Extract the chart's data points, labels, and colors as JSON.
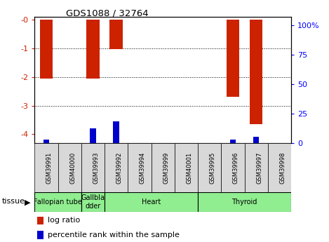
{
  "title": "GDS1088 / 32764",
  "samples": [
    "GSM39991",
    "GSM40000",
    "GSM39993",
    "GSM39992",
    "GSM39994",
    "GSM39999",
    "GSM40001",
    "GSM39995",
    "GSM39996",
    "GSM39997",
    "GSM39998"
  ],
  "log_ratios": [
    -2.05,
    0.0,
    -2.05,
    -1.02,
    0.0,
    0.0,
    0.0,
    0.0,
    -2.7,
    -3.65,
    0.0
  ],
  "percentile_ranks": [
    3,
    0,
    12,
    18,
    0,
    0,
    0,
    0,
    3,
    5,
    0
  ],
  "ylim_left": [
    -4.3,
    0.1
  ],
  "ylim_right": [
    0,
    107
  ],
  "left_ticks": [
    0,
    -1,
    -2,
    -3,
    -4
  ],
  "right_ticks": [
    0,
    25,
    50,
    75,
    100
  ],
  "tissue_groups": [
    {
      "label": "Fallopian tube",
      "start": 0,
      "end": 2,
      "color": "#90ee90"
    },
    {
      "label": "Gallbla\ndder",
      "start": 2,
      "end": 3,
      "color": "#90ee90"
    },
    {
      "label": "Heart",
      "start": 3,
      "end": 7,
      "color": "#90ee90"
    },
    {
      "label": "Thyroid",
      "start": 7,
      "end": 11,
      "color": "#90ee90"
    }
  ],
  "bar_color": "#cc2200",
  "rank_color": "#0000cc",
  "bar_width": 0.55,
  "rank_bar_width": 0.25,
  "plot_bg_color": "#ffffff",
  "tick_label_bg": "#d8d8d8"
}
